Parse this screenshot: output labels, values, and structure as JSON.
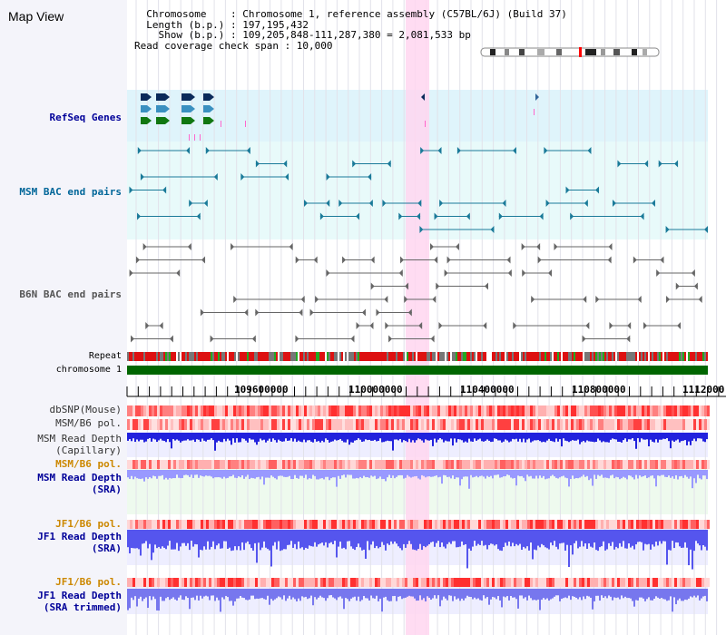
{
  "header": {
    "title": "Map View",
    "info_lines": [
      "  Chromosome    : Chromosome 1, reference assembly (C57BL/6J) (Build 37)",
      "  Length (b.p.) : 197,195,432",
      "    Show (b.p.) : 109,205,848-111,287,380 = 2,081,533 bp",
      "Read coverage check span : 10,000"
    ]
  },
  "tracks": {
    "refseq": "RefSeq Genes",
    "msm_bac": "MSM BAC end pairs",
    "b6n_bac": "B6N BAC end pairs",
    "repeat": "Repeat",
    "chromosome": "chromosome 1",
    "dbsnp": "dbSNP(Mouse)",
    "msm_b6_pol_1": "MSM/B6 pol.",
    "msm_depth_cap_1": "MSM Read Depth",
    "msm_depth_cap_2": "(Capillary)",
    "msm_b6_pol_2": "MSM/B6 pol.",
    "msm_depth_sra_1": "MSM Read Depth",
    "msm_depth_sra_2": "(SRA)",
    "jf1_pol_1": "JF1/B6 pol.",
    "jf1_depth_sra_1": "JF1 Read Depth",
    "jf1_depth_sra_2": "(SRA)",
    "jf1_pol_2": "JF1/B6 pol.",
    "jf1_depth_trim_1": "JF1 Read Depth",
    "jf1_depth_trim_2": "(SRA trimmed)"
  },
  "ruler": {
    "ticks": [
      "109600000",
      "110000000",
      "110400000",
      "110800000",
      "1112000"
    ]
  },
  "colors": {
    "refseq_label": "#000099",
    "msm_label": "#006699",
    "b6n_label": "#555555",
    "pol_label": "#cc8800",
    "depth_label": "#000099",
    "highlight": "#ffd6f0",
    "chromosome": "#006600"
  }
}
